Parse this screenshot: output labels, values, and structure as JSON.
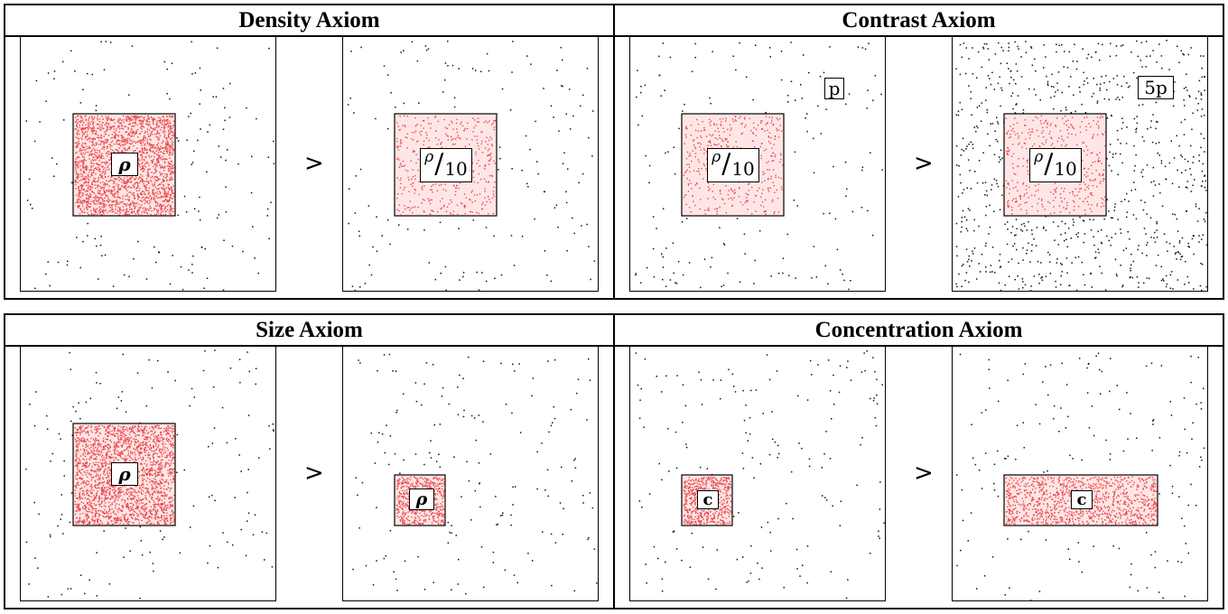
{
  "figures": [
    {
      "title": "Density Axiom",
      "comparison": ">",
      "left": {
        "label": "ρ",
        "bg_dots": 170,
        "region_dots": 2200
      },
      "right": {
        "label_num": "ρ",
        "label_den": "10",
        "bg_dots": 170,
        "region_dots": 420
      }
    },
    {
      "title": "Contrast Axiom",
      "comparison": ">",
      "left": {
        "label_num": "ρ",
        "label_den": "10",
        "bg_label": "p",
        "bg_dots": 170,
        "region_dots": 420
      },
      "right": {
        "label_num": "ρ",
        "label_den": "10",
        "bg_label": "5p",
        "bg_dots": 900,
        "region_dots": 420
      }
    },
    {
      "title": "Size Axiom",
      "comparison": ">",
      "left": {
        "label": "ρ",
        "bg_dots": 170,
        "region_dots": 2200
      },
      "right": {
        "label": "ρ",
        "bg_dots": 170,
        "region_dots": 560
      }
    },
    {
      "title": "Concentration Axiom",
      "comparison": ">",
      "left": {
        "label": "c",
        "bg_dots": 170,
        "region_dots": 560
      },
      "right": {
        "label": "c",
        "bg_dots": 170,
        "region_dots": 1100
      }
    }
  ],
  "colors": {
    "region_fill": "#ffe6e6",
    "region_dot": "#e8484a",
    "bg_dot": "#111111"
  }
}
